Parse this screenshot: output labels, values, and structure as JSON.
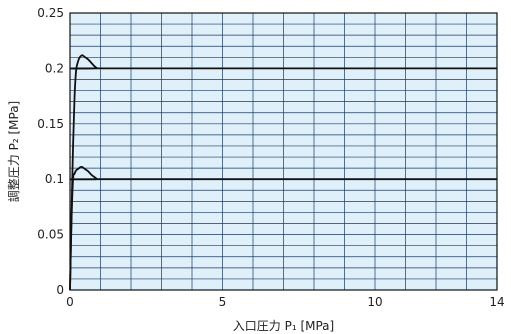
{
  "chart_data": {
    "type": "line",
    "title": "",
    "xlabel": "入口圧力 P₁ [MPa]",
    "ylabel": "調整圧力 P₂ [MPa]",
    "xlim": [
      0,
      14
    ],
    "ylim": [
      0,
      0.25
    ],
    "x_ticks": [
      0,
      5,
      10,
      14
    ],
    "x_tick_labels": [
      "0",
      "5",
      "10",
      "14"
    ],
    "y_ticks": [
      0,
      0.05,
      0.1,
      0.15,
      0.2,
      0.25
    ],
    "y_tick_labels": [
      "0",
      "0.05",
      "0.1",
      "0.15",
      "0.2",
      "0.25"
    ],
    "grid": true,
    "plot_background": "#dff0fb",
    "grid_color": "#1b3a5c",
    "line_color": "#111111",
    "series": [
      {
        "name": "",
        "x": [
          0,
          0.05,
          0.1,
          0.15,
          0.2,
          0.25,
          0.3,
          0.35,
          0.4,
          0.45,
          0.5,
          0.6,
          0.7,
          0.8,
          0.9,
          1.0,
          14
        ],
        "values": [
          0,
          0.063,
          0.1,
          0.105,
          0.108,
          0.109,
          0.11,
          0.111,
          0.111,
          0.11,
          0.109,
          0.107,
          0.104,
          0.102,
          0.1,
          0.1,
          0.1
        ]
      },
      {
        "name": "",
        "x": [
          0,
          0.05,
          0.1,
          0.15,
          0.2,
          0.25,
          0.3,
          0.35,
          0.4,
          0.45,
          0.5,
          0.6,
          0.7,
          0.8,
          0.9,
          1.0,
          14
        ],
        "values": [
          0,
          0.07,
          0.13,
          0.175,
          0.198,
          0.205,
          0.209,
          0.211,
          0.212,
          0.211,
          0.21,
          0.208,
          0.205,
          0.202,
          0.2,
          0.2,
          0.2
        ]
      }
    ]
  }
}
